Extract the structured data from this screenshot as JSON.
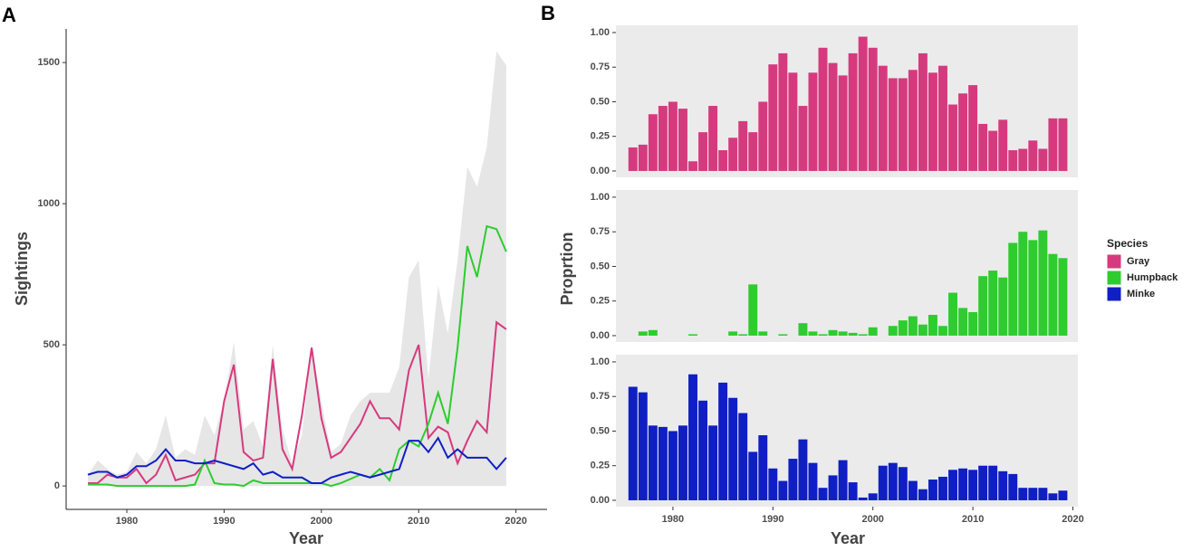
{
  "chart_data": [
    {
      "type": "line",
      "panel_label": "A",
      "xlabel": "Year",
      "ylabel": "Sightings",
      "x": [
        1976,
        1977,
        1978,
        1979,
        1980,
        1981,
        1982,
        1983,
        1984,
        1985,
        1986,
        1987,
        1988,
        1989,
        1990,
        1991,
        1992,
        1993,
        1994,
        1995,
        1996,
        1997,
        1998,
        1999,
        2000,
        2001,
        2002,
        2003,
        2004,
        2005,
        2006,
        2007,
        2008,
        2009,
        2010,
        2011,
        2012,
        2013,
        2014,
        2015,
        2016,
        2017,
        2018,
        2019
      ],
      "area": {
        "color": "#e6e6e6",
        "values": [
          40,
          90,
          60,
          40,
          50,
          120,
          80,
          130,
          250,
          100,
          130,
          110,
          250,
          180,
          300,
          510,
          200,
          230,
          140,
          500,
          200,
          80,
          180,
          500,
          300,
          120,
          150,
          250,
          300,
          330,
          330,
          330,
          420,
          740,
          800,
          380,
          710,
          540,
          800,
          1130,
          1060,
          1200,
          1540,
          1490
        ]
      },
      "series": [
        {
          "color": "#d63a7e",
          "values": [
            10,
            10,
            40,
            30,
            30,
            60,
            10,
            40,
            110,
            20,
            30,
            40,
            80,
            80,
            300,
            430,
            120,
            90,
            100,
            450,
            130,
            60,
            250,
            490,
            240,
            100,
            120,
            170,
            220,
            300,
            240,
            240,
            200,
            410,
            500,
            170,
            210,
            190,
            80,
            160,
            230,
            190,
            580,
            555
          ]
        },
        {
          "color": "#2ecc2e",
          "values": [
            5,
            5,
            5,
            0,
            0,
            0,
            0,
            0,
            0,
            0,
            0,
            5,
            90,
            10,
            5,
            5,
            0,
            20,
            10,
            10,
            10,
            10,
            10,
            10,
            10,
            0,
            10,
            25,
            40,
            30,
            60,
            20,
            130,
            160,
            140,
            220,
            330,
            220,
            490,
            850,
            740,
            920,
            910,
            830
          ]
        },
        {
          "color": "#0f1fc4",
          "values": [
            40,
            50,
            50,
            30,
            40,
            70,
            70,
            90,
            130,
            90,
            90,
            80,
            80,
            90,
            80,
            70,
            60,
            80,
            40,
            50,
            30,
            30,
            30,
            10,
            10,
            30,
            40,
            50,
            40,
            30,
            40,
            50,
            60,
            160,
            160,
            120,
            170,
            100,
            130,
            100,
            100,
            100,
            60,
            100
          ]
        }
      ],
      "xlim": [
        1973.76,
        2023.2
      ],
      "xticks": [
        1980,
        1990,
        2000,
        2010,
        2020
      ],
      "ylim": [
        -83,
        1619
      ],
      "yticks": [
        0,
        500,
        1000,
        1500
      ]
    },
    {
      "type": "bar",
      "panel_label": "B",
      "xlabel": "Year",
      "ylabel": "Proprtion",
      "legend_title": "Species",
      "x": [
        1976,
        1977,
        1978,
        1979,
        1980,
        1981,
        1982,
        1983,
        1984,
        1985,
        1986,
        1987,
        1988,
        1989,
        1990,
        1991,
        1992,
        1993,
        1994,
        1995,
        1996,
        1997,
        1998,
        1999,
        2000,
        2001,
        2002,
        2003,
        2004,
        2005,
        2006,
        2007,
        2008,
        2009,
        2010,
        2011,
        2012,
        2013,
        2014,
        2015,
        2016,
        2017,
        2018,
        2019
      ],
      "series": [
        {
          "name": "Gray",
          "color": "#d63a7e",
          "values": [
            0.17,
            0.19,
            0.41,
            0.47,
            0.5,
            0.45,
            0.07,
            0.28,
            0.47,
            0.15,
            0.24,
            0.36,
            0.28,
            0.5,
            0.77,
            0.85,
            0.71,
            0.47,
            0.71,
            0.89,
            0.78,
            0.69,
            0.85,
            0.97,
            0.89,
            0.76,
            0.67,
            0.67,
            0.73,
            0.85,
            0.71,
            0.76,
            0.48,
            0.56,
            0.62,
            0.34,
            0.29,
            0.37,
            0.15,
            0.16,
            0.22,
            0.16,
            0.38,
            0.38
          ]
        },
        {
          "name": "Humpback",
          "color": "#2ecc2e",
          "values": [
            0,
            0.03,
            0.04,
            0,
            0,
            0,
            0.01,
            0,
            0,
            0,
            0.03,
            0.01,
            0.37,
            0.03,
            0,
            0.01,
            0,
            0.09,
            0.03,
            0.01,
            0.04,
            0.03,
            0.02,
            0.01,
            0.06,
            0,
            0.07,
            0.11,
            0.14,
            0.08,
            0.15,
            0.07,
            0.31,
            0.2,
            0.17,
            0.43,
            0.47,
            0.42,
            0.67,
            0.75,
            0.69,
            0.76,
            0.59,
            0.56
          ]
        },
        {
          "name": "Minke",
          "color": "#0f1fc4",
          "values": [
            0.82,
            0.78,
            0.54,
            0.53,
            0.5,
            0.54,
            0.91,
            0.72,
            0.54,
            0.85,
            0.74,
            0.63,
            0.35,
            0.47,
            0.23,
            0.14,
            0.3,
            0.44,
            0.27,
            0.09,
            0.18,
            0.29,
            0.13,
            0.02,
            0.05,
            0.25,
            0.27,
            0.24,
            0.14,
            0.08,
            0.15,
            0.17,
            0.22,
            0.23,
            0.22,
            0.25,
            0.25,
            0.21,
            0.19,
            0.09,
            0.09,
            0.09,
            0.05,
            0.07
          ]
        }
      ],
      "xlim": [
        1974.3,
        2020.5
      ],
      "xticks": [
        1980,
        1990,
        2000,
        2010,
        2020
      ],
      "ylim": [
        -0.046,
        1.052
      ],
      "yticks": [
        {
          "value": 0,
          "label": "0.00"
        },
        {
          "value": 0.25,
          "label": "0.25"
        },
        {
          "value": 0.5,
          "label": "0.50"
        },
        {
          "value": 0.75,
          "label": "0.75"
        },
        {
          "value": 1,
          "label": "1.00"
        }
      ]
    }
  ]
}
